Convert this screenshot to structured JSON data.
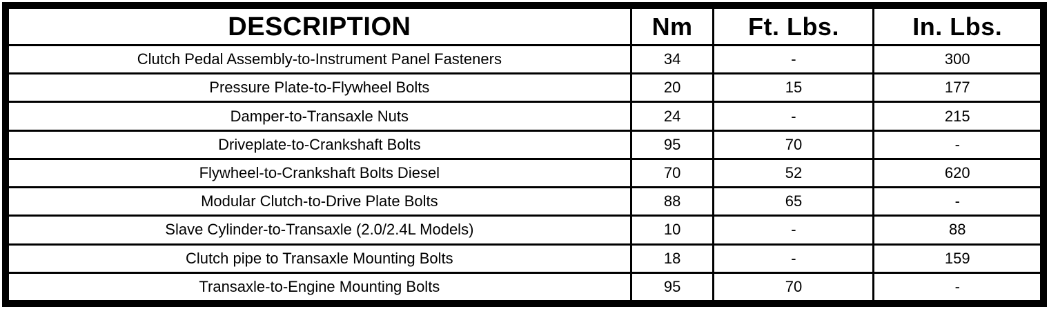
{
  "page": {
    "background_color": "#ffffff",
    "border_color": "#000000",
    "text_color": "#000000"
  },
  "table": {
    "columns": [
      {
        "key": "description",
        "label": "DESCRIPTION"
      },
      {
        "key": "nm",
        "label": "Nm"
      },
      {
        "key": "ft_lbs",
        "label": "Ft. Lbs."
      },
      {
        "key": "in_lbs",
        "label": "In. Lbs."
      }
    ],
    "rows": [
      {
        "description": "Clutch Pedal Assembly-to-Instrument Panel Fasteners",
        "nm": "34",
        "ft_lbs": "-",
        "in_lbs": "300"
      },
      {
        "description": "Pressure Plate-to-Flywheel Bolts",
        "nm": "20",
        "ft_lbs": "15",
        "in_lbs": "177"
      },
      {
        "description": "Damper-to-Transaxle Nuts",
        "nm": "24",
        "ft_lbs": "-",
        "in_lbs": "215"
      },
      {
        "description": "Driveplate-to-Crankshaft Bolts",
        "nm": "95",
        "ft_lbs": "70",
        "in_lbs": "-"
      },
      {
        "description": "Flywheel-to-Crankshaft Bolts Diesel",
        "nm": "70",
        "ft_lbs": "52",
        "in_lbs": "620"
      },
      {
        "description": "Modular Clutch-to-Drive Plate Bolts",
        "nm": "88",
        "ft_lbs": "65",
        "in_lbs": "-"
      },
      {
        "description": "Slave Cylinder-to-Transaxle (2.0/2.4L Models)",
        "nm": "10",
        "ft_lbs": "-",
        "in_lbs": "88"
      },
      {
        "description": "Clutch pipe to Transaxle Mounting Bolts",
        "nm": "18",
        "ft_lbs": "-",
        "in_lbs": "159"
      },
      {
        "description": "Transaxle-to-Engine Mounting Bolts",
        "nm": "95",
        "ft_lbs": "70",
        "in_lbs": "-"
      }
    ]
  }
}
